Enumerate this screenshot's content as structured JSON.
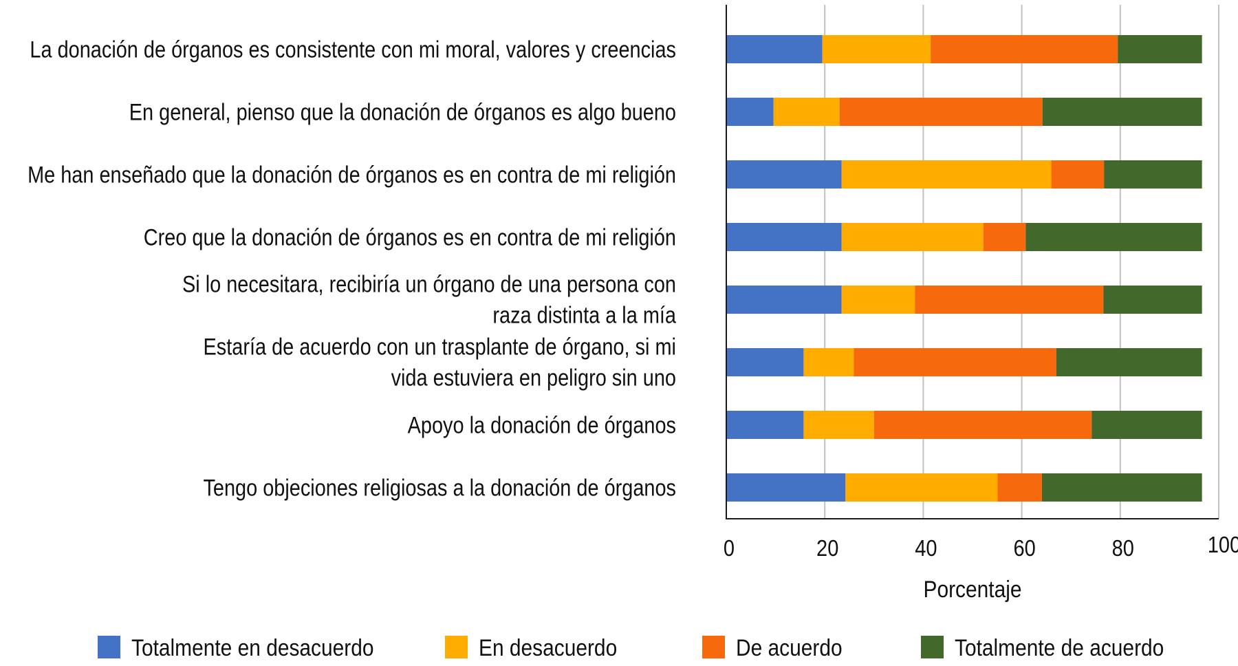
{
  "chart_data": {
    "type": "bar",
    "orientation": "horizontal",
    "stacked": true,
    "title": "",
    "xlabel": "Porcentaje",
    "ylabel": "",
    "xlim": [
      0,
      100
    ],
    "xticks": [
      0,
      20,
      40,
      60,
      80,
      100
    ],
    "xtick_labels": [
      "0",
      "20",
      "40",
      "60",
      "80",
      "100"
    ],
    "grid": "vertical gridlines on",
    "legend_position": "bottom",
    "categories": [
      [
        "La donación de órganos es consistente con mi moral, valores y creencias"
      ],
      [
        "En general, pienso que la donación de órganos es algo bueno"
      ],
      [
        "Me han enseñado que la donación de órganos es en contra de mi religión"
      ],
      [
        "Creo que la donación de órganos es en contra de mi religión"
      ],
      [
        "Si lo necesitara, recibiría un órgano de una persona con",
        "raza distinta a la mía"
      ],
      [
        "Estaría de acuerdo con un trasplante de órgano, si mi",
        "vida estuviera en peligro sin uno"
      ],
      [
        "Apoyo la donación de órganos"
      ],
      [
        "Tengo objeciones religiosas a la donación de órganos"
      ]
    ],
    "series": [
      {
        "name": "Totalmente en desacuerdo",
        "color": "#4472C4",
        "values": [
          19.5,
          9.6,
          23.4,
          23.4,
          23.4,
          15.7,
          15.7,
          24.2
        ]
      },
      {
        "name": "En desacuerdo",
        "color": "#FFAB00",
        "values": [
          22.0,
          13.4,
          42.6,
          28.8,
          14.9,
          10.2,
          14.3,
          30.9
        ]
      },
      {
        "name": "De acuerdo",
        "color": "#F6690D",
        "values": [
          38.0,
          41.2,
          10.7,
          8.6,
          38.3,
          41.1,
          44.2,
          9.0
        ]
      },
      {
        "name": "Totalmente de acuerdo",
        "color": "#43682B",
        "values": [
          17.1,
          32.4,
          19.9,
          35.8,
          20.0,
          29.6,
          22.4,
          32.5
        ]
      }
    ]
  },
  "colors": {
    "axis": "#1a1a1a",
    "gridline": "#c0c0c0",
    "text": "#111111"
  }
}
